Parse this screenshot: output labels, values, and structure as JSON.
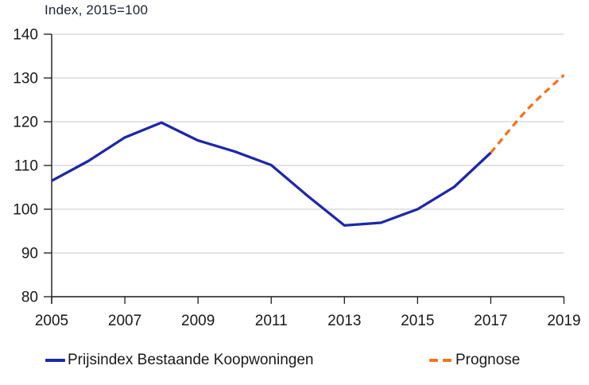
{
  "chart_data": {
    "type": "line",
    "title": "Index, 2015=100",
    "xlim": [
      2005,
      2019
    ],
    "ylim": [
      80,
      140
    ],
    "x_ticks": [
      2005,
      2007,
      2009,
      2011,
      2013,
      2015,
      2017,
      2019
    ],
    "y_ticks": [
      80,
      90,
      100,
      110,
      120,
      130,
      140
    ],
    "grid": "horizontal",
    "legend_position": "bottom",
    "series": [
      {
        "name": "Prijsindex Bestaande Koopwoningen",
        "style": "solid",
        "color": "#1F28A8",
        "x": [
          2005,
          2006,
          2007,
          2008,
          2009,
          2010,
          2011,
          2012,
          2013,
          2014,
          2015,
          2016,
          2017
        ],
        "values": [
          106.5,
          111.0,
          116.4,
          119.8,
          115.7,
          113.2,
          110.1,
          103.0,
          96.3,
          96.9,
          100.0,
          105.1,
          112.9
        ]
      },
      {
        "name": "Prognose",
        "style": "dashed",
        "color": "#F4731C",
        "x": [
          2017,
          2018,
          2019
        ],
        "values": [
          112.9,
          122.8,
          130.7
        ]
      }
    ],
    "colors": {
      "grid": "#DCDCDC",
      "axis": "#1A1A1A",
      "tick_label": "#1A1A1A"
    }
  }
}
